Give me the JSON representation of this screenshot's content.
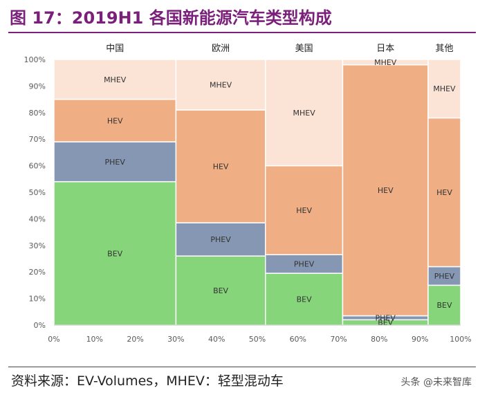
{
  "title": "图 17：2019H1 各国新能源汽车类型构成",
  "source": "资料来源：EV-Volumes，MHEV：轻型混动车",
  "watermark": "头条 @未来智库",
  "chart_data": {
    "type": "bar",
    "stacked": true,
    "variable_width": true,
    "categories": [
      "中国",
      "欧洲",
      "美国",
      "日本",
      "其他"
    ],
    "x_edges": [
      0,
      30,
      52,
      71,
      92,
      100
    ],
    "x_ticks": [
      "0%",
      "10%",
      "20%",
      "30%",
      "40%",
      "50%",
      "60%",
      "70%",
      "80%",
      "90%",
      "100%"
    ],
    "y_ticks": [
      "0%",
      "10%",
      "20%",
      "30%",
      "40%",
      "50%",
      "60%",
      "70%",
      "80%",
      "90%",
      "100%"
    ],
    "ylim": [
      0,
      100
    ],
    "xlim": [
      0,
      100
    ],
    "series": [
      {
        "name": "BEV",
        "color": "#86d57b",
        "values": [
          54,
          26,
          19.5,
          2,
          15
        ]
      },
      {
        "name": "PHEV",
        "color": "#8597b3",
        "values": [
          15,
          12.5,
          7,
          1.5,
          7
        ]
      },
      {
        "name": "HEV",
        "color": "#f0ae84",
        "values": [
          16,
          42.5,
          33.5,
          94.5,
          56
        ]
      },
      {
        "name": "MHEV",
        "color": "#fbe3d6",
        "values": [
          15,
          19,
          40,
          2,
          22
        ]
      }
    ]
  }
}
